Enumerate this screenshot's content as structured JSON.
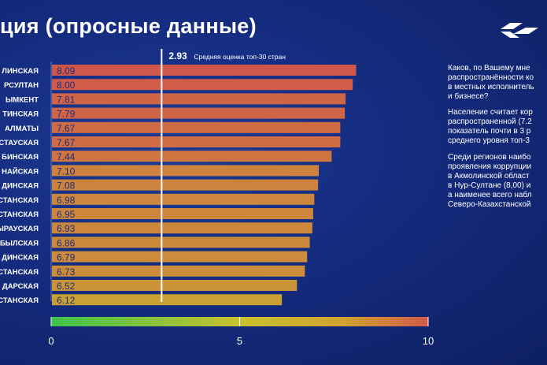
{
  "header": {
    "title": "ция (опросные данные)",
    "logo_icon": "logo-icon"
  },
  "side_notes": [
    "Каков, по Вашему мне\nраспространённости ко\nв местных исполнитель\nи бизнесе?",
    "Население считает кор\nраспространенной (7.2\nпоказатель почти в 3 р\nсреднего уровня топ-3",
    "Среди регионов наибо\nпроявления коррупции\nв Акмолинской област\nв Нур-Султане (8,00) и\nа наименее всего набл\nСеверо-Казахстанской"
  ],
  "colors": {
    "background": "#142b7e",
    "bar_high": "#d0584a",
    "bar_mid": "#cd7f3f",
    "bar_low": "#c9a432",
    "value_text": "#1e2b78",
    "reference_line": "#ffffff"
  },
  "chart_data": {
    "type": "bar",
    "orientation": "horizontal",
    "categories": [
      "ЛИНСКАЯ",
      "РСУЛТАН",
      "ЫМКЕНТ",
      "ТИНСКАЯ",
      "АЛМАТЫ",
      "СТАУСКАЯ",
      "БИНСКАЯ",
      "НАЙСКАЯ",
      "ДИНСКАЯ",
      "ХСТАНСКАЯ",
      "ХСТАНСКАЯ",
      "ЫРАУСКАЯ",
      "БЫЛСКАЯ",
      "ДИНСКАЯ",
      "ХСТАНСКАЯ",
      "ДАРСКАЯ",
      "ХСТАНСКАЯ"
    ],
    "values": [
      8.09,
      8.0,
      7.81,
      7.79,
      7.67,
      7.67,
      7.44,
      7.1,
      7.08,
      6.98,
      6.95,
      6.93,
      6.86,
      6.79,
      6.73,
      6.52,
      6.12
    ],
    "value_labels": [
      "8.09",
      "8.00",
      "7.81",
      "7.79",
      "7.67",
      "7.67",
      "7.44",
      "7.10",
      "7.08",
      "6.98",
      "6.95",
      "6.93",
      "6.86",
      "6.79",
      "6.73",
      "6.52",
      "6.12"
    ],
    "xlim": [
      0,
      10
    ],
    "reference": {
      "value": 2.93,
      "value_label": "2.93",
      "label": "Средняя оценка топ-30 стран"
    },
    "colorbar": {
      "min": 0,
      "max": 10,
      "ticks": [
        0,
        5,
        10
      ],
      "tick_labels": [
        "0",
        "5",
        "10"
      ],
      "colors": [
        "#3dc44c",
        "#c9c22f",
        "#d2a12f",
        "#d25a4b"
      ]
    }
  }
}
